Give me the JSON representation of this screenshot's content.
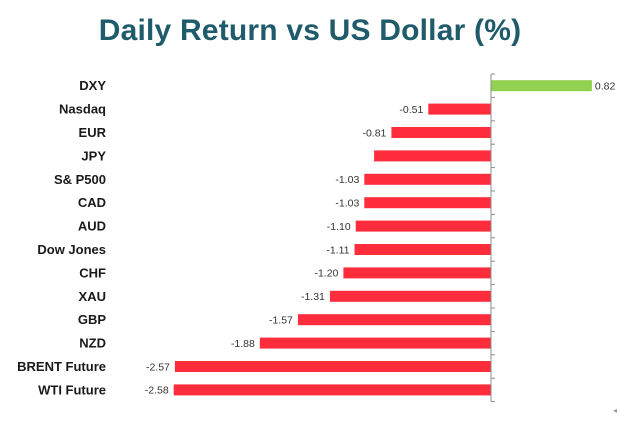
{
  "chart_data": {
    "type": "bar",
    "orientation": "horizontal",
    "title": "Daily Return vs US Dollar (%)",
    "xlabel": "",
    "ylabel": "",
    "grid": false,
    "legend": "none",
    "categories": [
      "DXY",
      "Nasdaq",
      "EUR",
      "JPY",
      "S& P500",
      "CAD",
      "AUD",
      "Dow Jones",
      "CHF",
      "XAU",
      "GBP",
      "NZD",
      "BRENT Future",
      "WTI Future"
    ],
    "values": [
      0.82,
      -0.51,
      -0.81,
      -0.95,
      -1.03,
      -1.03,
      -1.1,
      -1.11,
      -1.2,
      -1.31,
      -1.57,
      -1.88,
      -2.57,
      -2.58
    ],
    "data_labels": [
      "0.82",
      "-0.51",
      "-0.81",
      "",
      "-1.03",
      "-1.03",
      "-1.10",
      "-1.11",
      "-1.20",
      "-1.31",
      "-1.57",
      "-1.88",
      "-2.57",
      "-2.58"
    ],
    "xlim": [
      -2.58,
      0.82
    ],
    "colors": {
      "positive": "#92d050",
      "negative": "#ff2d3c",
      "title": "#1f5b6b"
    }
  },
  "corner_glyph": "◂"
}
